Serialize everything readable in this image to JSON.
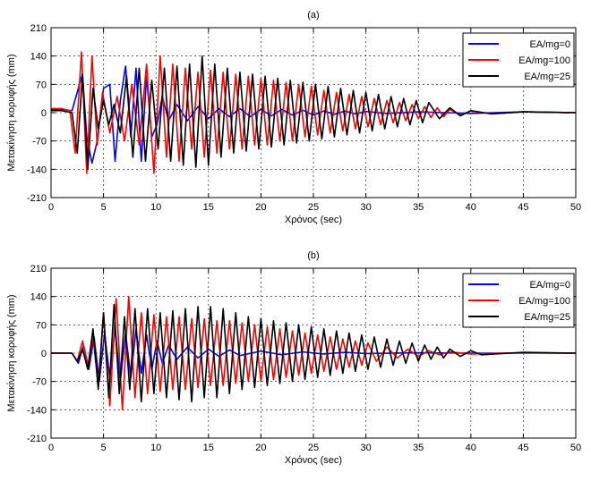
{
  "chart_data": [
    {
      "type": "line",
      "title": "(a)",
      "xlabel": "Χρόνος (sec)",
      "ylabel": "Μετακίνηση κορυφής (mm)",
      "xlim": [
        0,
        50
      ],
      "ylim": [
        -210,
        210
      ],
      "xticks": [
        0,
        5,
        10,
        15,
        20,
        25,
        30,
        35,
        40,
        45,
        50
      ],
      "yticks": [
        -210,
        -140,
        -70,
        0,
        70,
        140,
        210
      ],
      "grid": "on",
      "legend_position": "top-right",
      "series": [
        {
          "name": "EA/mg=0",
          "color": "#0000ff",
          "x": [
            0,
            1,
            2,
            2.6,
            3,
            3.4,
            3.9,
            4.4,
            5,
            5.6,
            6.1,
            6.6,
            7.1,
            7.6,
            8.1,
            8.6,
            9.1,
            9.6,
            10.1,
            10.6,
            11.2,
            12,
            13,
            14,
            15,
            16,
            17,
            18,
            19,
            20,
            21,
            22,
            23,
            24,
            25,
            26,
            27,
            28,
            29,
            30,
            32,
            35,
            40,
            45,
            50
          ],
          "y": [
            8,
            8,
            5,
            60,
            95,
            -60,
            -125,
            -70,
            60,
            70,
            -120,
            30,
            115,
            -60,
            110,
            -120,
            90,
            -60,
            -30,
            40,
            -20,
            20,
            -20,
            15,
            -15,
            10,
            -10,
            10,
            -10,
            8,
            -8,
            8,
            -6,
            6,
            -6,
            4,
            -4,
            4,
            -3,
            3,
            -2,
            2,
            -2,
            2,
            0
          ]
        },
        {
          "name": "EA/mg=100",
          "color": "#ff0000",
          "x": [
            0,
            1,
            1.8,
            2.3,
            2.9,
            3.4,
            3.9,
            4.4,
            4.9,
            5.6,
            6.3,
            7,
            7.7,
            8.4,
            9.1,
            9.8,
            10.4,
            11,
            11.6,
            12.2,
            12.8,
            13.4,
            14,
            14.6,
            15.2,
            15.8,
            16.4,
            17,
            17.6,
            18.2,
            18.8,
            19.4,
            20,
            20.6,
            21.2,
            21.8,
            22.4,
            23,
            23.6,
            24.2,
            24.8,
            25.4,
            26,
            26.6,
            27.2,
            27.8,
            28.4,
            29,
            29.6,
            30.2,
            30.8,
            31.4,
            32,
            32.6,
            33.2,
            33.8,
            34.4,
            35,
            35.6,
            36.2,
            36.8,
            37.4,
            38,
            39,
            40,
            42,
            45,
            50
          ],
          "y": [
            10,
            10,
            5,
            -100,
            150,
            -150,
            140,
            -80,
            50,
            -50,
            40,
            -70,
            70,
            -80,
            120,
            -150,
            140,
            -110,
            120,
            -120,
            110,
            -90,
            100,
            -110,
            105,
            -100,
            100,
            -90,
            95,
            -90,
            90,
            -80,
            85,
            -80,
            80,
            -70,
            75,
            -70,
            70,
            -60,
            65,
            -55,
            55,
            -50,
            50,
            -45,
            45,
            -40,
            40,
            -35,
            35,
            -30,
            30,
            -25,
            25,
            -20,
            20,
            -15,
            15,
            -12,
            12,
            -10,
            8,
            -6,
            4,
            -3,
            2,
            0
          ]
        },
        {
          "name": "EA/mg=25",
          "color": "#000000",
          "x": [
            0,
            1,
            2,
            2.5,
            3,
            3.5,
            4,
            4.5,
            5,
            5.5,
            6,
            6.6,
            7.2,
            7.8,
            8.4,
            9,
            9.6,
            10.2,
            10.8,
            11.4,
            12,
            12.6,
            13.2,
            13.8,
            14.4,
            15,
            15.6,
            16.2,
            16.8,
            17.4,
            18,
            18.6,
            19.2,
            19.8,
            20.4,
            21,
            21.6,
            22.2,
            22.8,
            23.4,
            24,
            24.6,
            25.2,
            25.8,
            26.4,
            27,
            27.6,
            28.2,
            28.8,
            29.4,
            30,
            30.6,
            31.2,
            31.8,
            32.4,
            33,
            33.6,
            34.2,
            34.8,
            35.4,
            36,
            37,
            38,
            39,
            40,
            42,
            45,
            50
          ],
          "y": [
            5,
            5,
            0,
            -100,
            95,
            -140,
            60,
            -40,
            30,
            -30,
            20,
            -50,
            90,
            -110,
            110,
            -120,
            80,
            -90,
            110,
            -120,
            115,
            -130,
            120,
            -135,
            140,
            -130,
            120,
            -110,
            110,
            -100,
            100,
            -95,
            95,
            -90,
            90,
            -85,
            85,
            -80,
            80,
            -75,
            75,
            -70,
            70,
            -65,
            65,
            -60,
            60,
            -55,
            55,
            -50,
            50,
            -45,
            45,
            -40,
            40,
            -35,
            35,
            -30,
            30,
            -25,
            25,
            -15,
            12,
            -8,
            5,
            -3,
            2,
            0
          ]
        }
      ]
    },
    {
      "type": "line",
      "title": "(b)",
      "xlabel": "Χρόνος (sec)",
      "ylabel": "Μετακίνηση κορυφής (mm)",
      "xlim": [
        0,
        50
      ],
      "ylim": [
        -210,
        210
      ],
      "xticks": [
        0,
        5,
        10,
        15,
        20,
        25,
        30,
        35,
        40,
        45,
        50
      ],
      "yticks": [
        -210,
        -140,
        -70,
        0,
        70,
        140,
        210
      ],
      "grid": "on",
      "legend_position": "top-right",
      "series": [
        {
          "name": "EA/mg=0",
          "color": "#0000ff",
          "x": [
            0,
            2,
            2.6,
            3.1,
            3.6,
            4.1,
            4.6,
            5.1,
            5.6,
            6.1,
            6.6,
            7.1,
            7.6,
            8.1,
            8.6,
            9.1,
            9.6,
            10.1,
            10.6,
            11.2,
            12,
            13,
            14,
            15,
            16,
            17,
            18,
            20,
            22,
            24,
            26,
            28,
            30,
            35,
            40,
            50
          ],
          "y": [
            0,
            0,
            -25,
            20,
            -40,
            40,
            -70,
            50,
            -60,
            60,
            -70,
            50,
            -60,
            60,
            -50,
            45,
            -40,
            30,
            -25,
            20,
            -15,
            15,
            -12,
            10,
            -8,
            8,
            -6,
            5,
            -4,
            3,
            -2,
            2,
            -1,
            1,
            0,
            0
          ]
        },
        {
          "name": "EA/mg=100",
          "color": "#ff0000",
          "x": [
            0,
            2,
            2.5,
            3,
            3.5,
            4,
            4.5,
            5,
            5.6,
            6.2,
            6.8,
            7.4,
            8,
            8.6,
            9.2,
            9.8,
            10.4,
            11,
            11.6,
            12.2,
            12.8,
            13.4,
            14,
            14.6,
            15.2,
            15.8,
            16.4,
            17,
            17.6,
            18.2,
            18.8,
            19.4,
            20,
            20.6,
            21.2,
            21.8,
            22.4,
            23,
            23.6,
            24.2,
            24.8,
            25.4,
            26,
            26.6,
            27.2,
            27.8,
            28.4,
            29,
            29.6,
            30.2,
            31,
            32,
            33,
            34,
            35,
            36,
            37,
            38,
            40,
            45,
            50
          ],
          "y": [
            0,
            0,
            -20,
            30,
            -30,
            40,
            -80,
            100,
            -130,
            135,
            -140,
            140,
            -110,
            100,
            -100,
            95,
            -95,
            90,
            -90,
            90,
            -90,
            85,
            -85,
            85,
            -80,
            80,
            -80,
            80,
            -75,
            75,
            -70,
            70,
            -70,
            65,
            -65,
            60,
            -60,
            55,
            -55,
            50,
            -50,
            45,
            -45,
            40,
            -40,
            35,
            -35,
            30,
            -30,
            25,
            -20,
            15,
            -12,
            10,
            -8,
            6,
            -4,
            3,
            -2,
            1,
            0
          ]
        },
        {
          "name": "EA/mg=25",
          "color": "#000000",
          "x": [
            0,
            2,
            2.5,
            3,
            3.5,
            4,
            4.5,
            5,
            5.5,
            6,
            6.5,
            7,
            7.5,
            8,
            8.6,
            9.2,
            9.8,
            10.4,
            11,
            11.6,
            12.2,
            12.8,
            13.4,
            14,
            14.6,
            15.2,
            15.8,
            16.4,
            17,
            17.6,
            18.2,
            18.8,
            19.4,
            20,
            20.6,
            21.2,
            21.8,
            22.4,
            23,
            23.6,
            24.2,
            24.8,
            25.4,
            26,
            26.6,
            27.2,
            27.8,
            28.4,
            29,
            29.6,
            30.2,
            30.8,
            31.4,
            32,
            32.6,
            33.2,
            33.8,
            34.4,
            35,
            35.6,
            36.2,
            36.8,
            37.4,
            38,
            39,
            40,
            41,
            45,
            50
          ],
          "y": [
            0,
            0,
            -20,
            10,
            -40,
            60,
            -90,
            100,
            -110,
            120,
            -100,
            90,
            -90,
            110,
            -120,
            110,
            -100,
            100,
            -110,
            105,
            -115,
            110,
            -120,
            115,
            -110,
            115,
            -110,
            110,
            -100,
            100,
            -90,
            90,
            -85,
            85,
            -80,
            80,
            -75,
            75,
            -70,
            70,
            -65,
            65,
            -60,
            60,
            -55,
            55,
            -50,
            50,
            -45,
            45,
            -40,
            40,
            -35,
            35,
            -30,
            30,
            -25,
            25,
            -20,
            20,
            -15,
            15,
            -12,
            10,
            -8,
            6,
            -4,
            2,
            0
          ]
        }
      ]
    }
  ]
}
